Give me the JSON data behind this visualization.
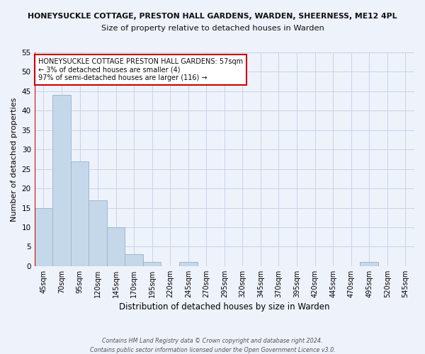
{
  "title_line1": "HONEYSUCKLE COTTAGE, PRESTON HALL GARDENS, WARDEN, SHEERNESS, ME12 4PL",
  "title_line2": "Size of property relative to detached houses in Warden",
  "xlabel": "Distribution of detached houses by size in Warden",
  "ylabel": "Number of detached properties",
  "categories": [
    "45sqm",
    "70sqm",
    "95sqm",
    "120sqm",
    "145sqm",
    "170sqm",
    "195sqm",
    "220sqm",
    "245sqm",
    "270sqm",
    "295sqm",
    "320sqm",
    "345sqm",
    "370sqm",
    "395sqm",
    "420sqm",
    "445sqm",
    "470sqm",
    "495sqm",
    "520sqm",
    "545sqm"
  ],
  "values": [
    15,
    44,
    27,
    17,
    10,
    3,
    1,
    0,
    1,
    0,
    0,
    0,
    0,
    0,
    0,
    0,
    0,
    0,
    1,
    0,
    0
  ],
  "bar_color": "#c5d8ea",
  "bar_edge_color": "#9db8cc",
  "highlight_color": "#cc0000",
  "ylim": [
    0,
    55
  ],
  "yticks": [
    0,
    5,
    10,
    15,
    20,
    25,
    30,
    35,
    40,
    45,
    50,
    55
  ],
  "annotation_box_text": "HONEYSUCKLE COTTAGE PRESTON HALL GARDENS: 57sqm\n← 3% of detached houses are smaller (4)\n97% of semi-detached houses are larger (116) →",
  "annotation_box_color": "#ffffff",
  "annotation_box_edge_color": "#cc0000",
  "footer_line1": "Contains HM Land Registry data © Crown copyright and database right 2024.",
  "footer_line2": "Contains public sector information licensed under the Open Government Licence v3.0.",
  "grid_color": "#c8d4e8",
  "background_color": "#eef2fb"
}
